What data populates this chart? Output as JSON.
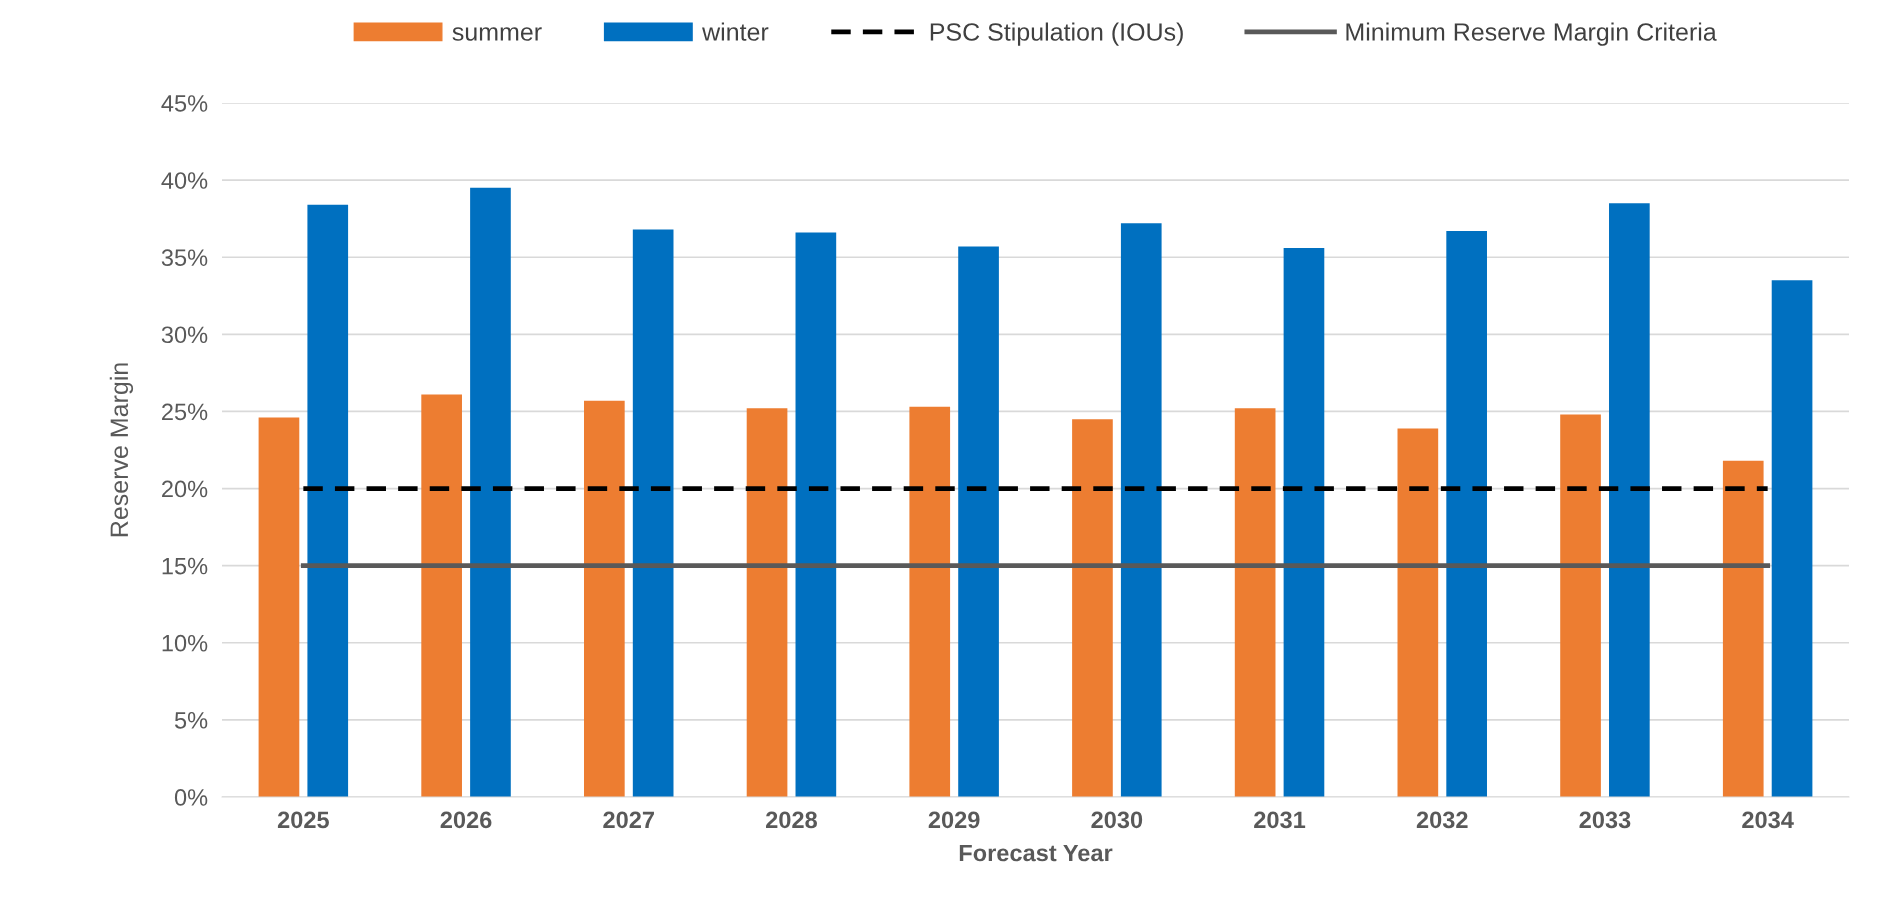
{
  "chart_data": {
    "type": "bar",
    "xlabel": "Forecast Year",
    "ylabel": "Reserve Margin",
    "categories": [
      "2025",
      "2026",
      "2027",
      "2028",
      "2029",
      "2030",
      "2031",
      "2032",
      "2033",
      "2034"
    ],
    "series": [
      {
        "name": "summer",
        "color": "#ed7d31",
        "values": [
          24.6,
          26.1,
          25.7,
          25.2,
          25.3,
          24.5,
          25.2,
          23.9,
          24.8,
          21.8
        ]
      },
      {
        "name": "winter",
        "color": "#0070c0",
        "values": [
          38.4,
          39.5,
          36.8,
          36.6,
          35.7,
          37.2,
          35.6,
          36.7,
          38.5,
          33.5
        ]
      },
      {
        "name": "PSC Stipulation (IOUs)",
        "type": "line",
        "color": "#000000",
        "line_style": "dashed",
        "values": [
          20,
          20,
          20,
          20,
          20,
          20,
          20,
          20,
          20,
          20
        ]
      },
      {
        "name": "Minimum Reserve Margin Criteria",
        "type": "line",
        "color": "#595959",
        "line_style": "solid",
        "values": [
          15,
          15,
          15,
          15,
          15,
          15,
          15,
          15,
          15,
          15
        ]
      }
    ],
    "ylim": [
      0,
      45
    ],
    "yticks": [
      {
        "value": 0,
        "label": "0%"
      },
      {
        "value": 5,
        "label": "5%"
      },
      {
        "value": 10,
        "label": "10%"
      },
      {
        "value": 15,
        "label": "15%"
      },
      {
        "value": 20,
        "label": "20%"
      },
      {
        "value": 25,
        "label": "25%"
      },
      {
        "value": 30,
        "label": "30%"
      },
      {
        "value": 35,
        "label": "35%"
      },
      {
        "value": 40,
        "label": "40%"
      },
      {
        "value": 45,
        "label": "45%"
      }
    ],
    "grid": "y",
    "legend": "top",
    "marker": "none"
  }
}
